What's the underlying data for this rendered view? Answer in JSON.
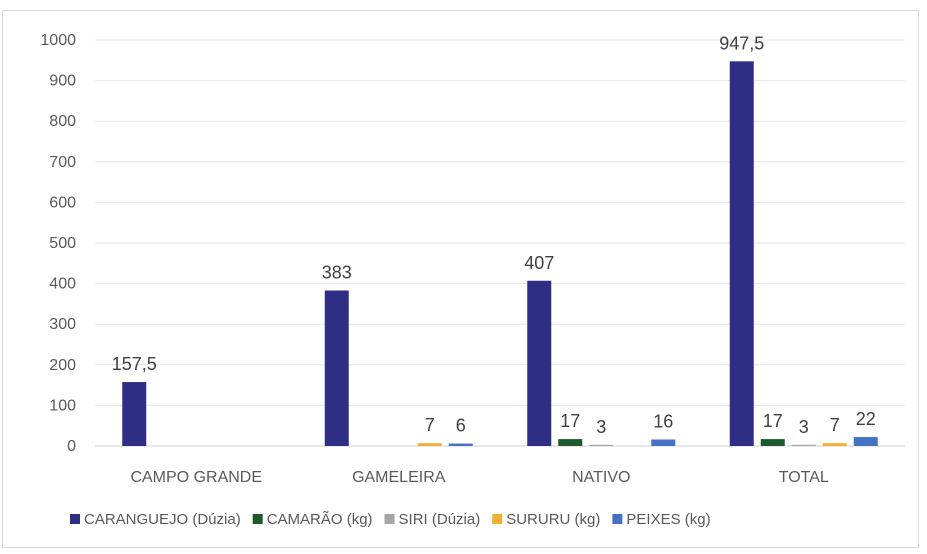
{
  "chart_data": {
    "type": "bar",
    "title": "",
    "xlabel": "",
    "ylabel": "",
    "ylim": [
      0,
      1000
    ],
    "yticks": [
      0,
      100,
      200,
      300,
      400,
      500,
      600,
      700,
      800,
      900,
      1000
    ],
    "grid": true,
    "legend_position": "bottom",
    "categories": [
      "CAMPO GRANDE",
      "GAMELEIRA",
      "NATIVO",
      "TOTAL"
    ],
    "series": [
      {
        "name": "CARANGUEJO (Dúzia)",
        "color": "#2e2e85",
        "values": [
          157.5,
          383,
          407,
          947.5
        ],
        "labels": [
          "157,5",
          "383",
          "407",
          "947,5"
        ]
      },
      {
        "name": "CAMARÃO (kg)",
        "color": "#1f5a2d",
        "values": [
          0,
          0,
          17,
          17
        ],
        "labels": [
          "",
          "",
          "17",
          "17"
        ]
      },
      {
        "name": "SIRI (Dúzia)",
        "color": "#a6a6a6",
        "values": [
          0,
          0,
          3,
          3
        ],
        "labels": [
          "",
          "",
          "3",
          "3"
        ]
      },
      {
        "name": "SURURU (kg)",
        "color": "#f2b134",
        "values": [
          0,
          7,
          0,
          7
        ],
        "labels": [
          "",
          "7",
          "",
          "7"
        ]
      },
      {
        "name": "PEIXES (kg)",
        "color": "#4472c4",
        "values": [
          0,
          6,
          16,
          22
        ],
        "labels": [
          "",
          "6",
          "16",
          "22"
        ]
      }
    ]
  }
}
